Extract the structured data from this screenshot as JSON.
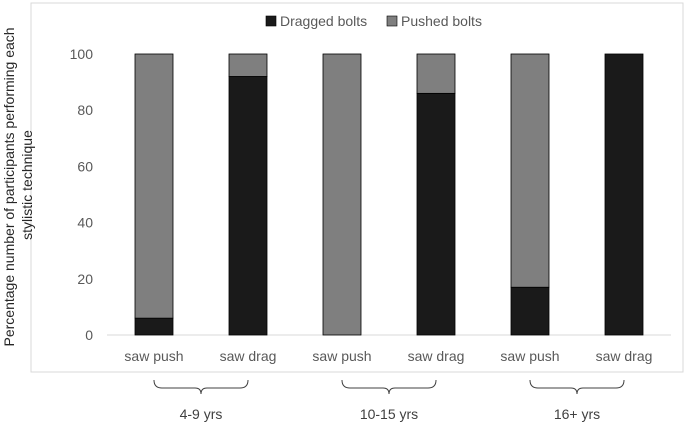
{
  "chart_data": {
    "type": "bar",
    "stacked": true,
    "ylabel_lines": [
      "Percentage number of participants performing each",
      "stylistic technique"
    ],
    "ylim": [
      0,
      100
    ],
    "yticks": [
      0,
      20,
      40,
      60,
      80,
      100
    ],
    "grid": false,
    "legend_position": "top",
    "categories": [
      "saw push",
      "saw drag",
      "saw push",
      "saw drag",
      "saw push",
      "saw drag"
    ],
    "groups": [
      {
        "label": "4-9 yrs",
        "members": [
          0,
          1
        ]
      },
      {
        "label": "10-15 yrs",
        "members": [
          2,
          3
        ]
      },
      {
        "label": "16+ yrs",
        "members": [
          4,
          5
        ]
      }
    ],
    "series": [
      {
        "name": "Dragged bolts",
        "color": "#1a1a1a",
        "values": [
          6,
          92,
          0,
          86,
          17,
          100
        ]
      },
      {
        "name": "Pushed bolts",
        "color": "#7f7f7f",
        "values": [
          94,
          8,
          100,
          14,
          83,
          0
        ]
      }
    ]
  }
}
